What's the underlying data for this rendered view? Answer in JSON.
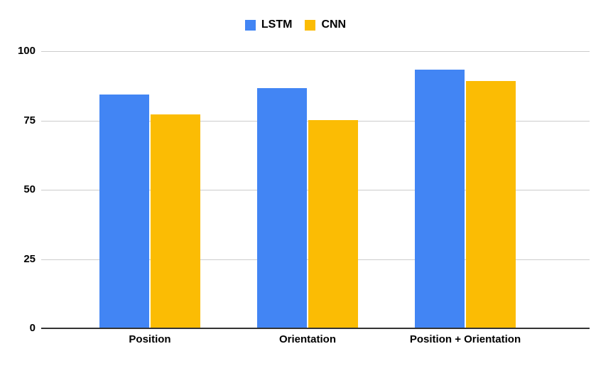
{
  "chart_data": {
    "type": "bar",
    "title": "",
    "categories": [
      "Position",
      "Orientation",
      "Position + Orientation"
    ],
    "series": [
      {
        "name": "LSTM",
        "color": "#4285F4",
        "values": [
          84,
          86.5,
          93
        ]
      },
      {
        "name": "CNN",
        "color": "#FBBC04",
        "values": [
          77,
          75,
          89
        ]
      }
    ],
    "ylim": [
      0,
      100
    ],
    "yticks": [
      0,
      25,
      50,
      75,
      100
    ],
    "grid": true,
    "legend_position": "top",
    "colors": {
      "background": "#FFFFFF",
      "gridline": "#CCCCCC",
      "axis_line": "#333333",
      "text": "#000000"
    }
  }
}
